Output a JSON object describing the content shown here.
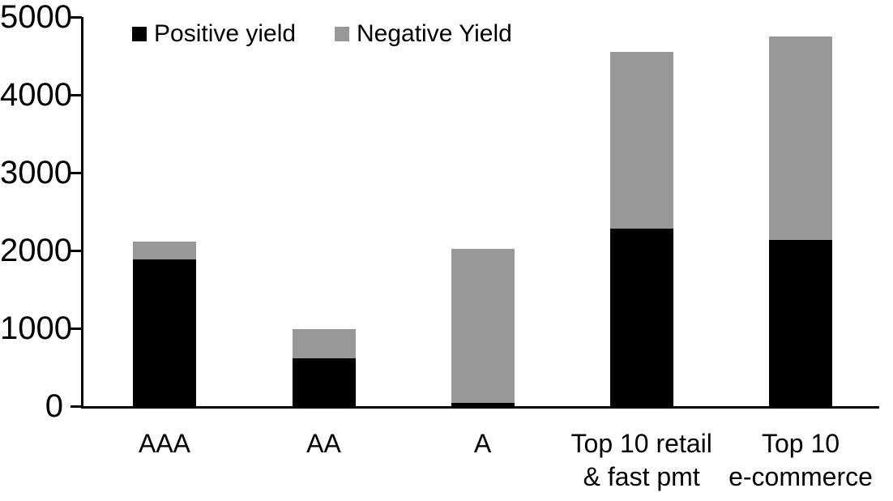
{
  "chart_data": {
    "type": "bar",
    "stacked": true,
    "title": "",
    "xlabel": "",
    "ylabel": "",
    "grid": false,
    "legend_position": "top-inside",
    "background_color": "#ffffff",
    "axis_color": "#000000",
    "categories": [
      "AAA",
      "AA",
      "A",
      "Top 10 retail & fast pmt",
      "Top 10 e-commerce"
    ],
    "category_label_lines": [
      [
        "AAA"
      ],
      [
        "AA"
      ],
      [
        "A"
      ],
      [
        "Top 10 retail",
        "& fast pmt"
      ],
      [
        "Top 10",
        "e-commerce"
      ]
    ],
    "series": [
      {
        "name": "Positive yield",
        "color": "#000000",
        "values": [
          1890,
          610,
          40,
          2280,
          2140
        ]
      },
      {
        "name": "Negative Yield",
        "color": "#989898",
        "values": [
          220,
          375,
          1980,
          2270,
          2610
        ]
      }
    ],
    "ylim": [
      0,
      5000
    ],
    "ytick_values": [
      0,
      1000,
      2000,
      3000,
      4000,
      5000
    ],
    "ytick_labels": [
      "0",
      "1000",
      "2000",
      "3000",
      "4000",
      "5000"
    ]
  }
}
